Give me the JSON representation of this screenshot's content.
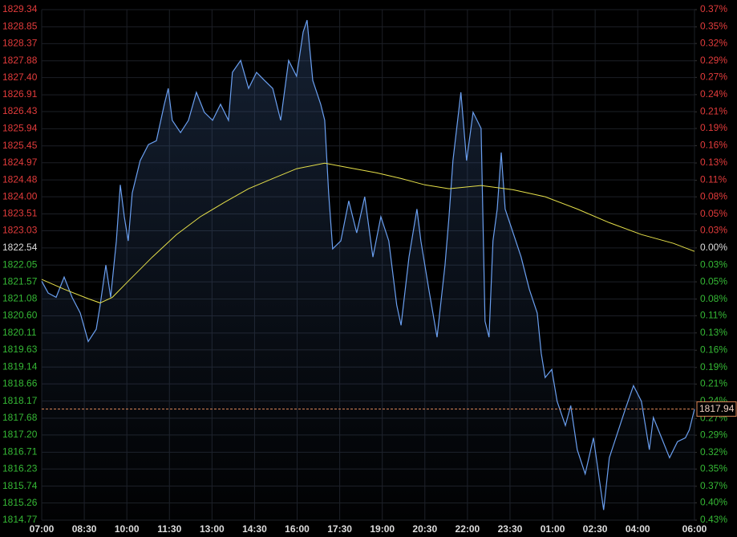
{
  "chart_data": {
    "type": "line",
    "grid": true,
    "background": "#000000",
    "up_color": "#e23b3b",
    "down_color": "#35b835",
    "neutral_color": "#dddddd",
    "last_price": 1817.94,
    "last_price_color": "#e0895a",
    "area_color": "#3a5a8c",
    "xlim": [
      7,
      30
    ],
    "xticks": [
      {
        "value": 7,
        "label": "07:00"
      },
      {
        "value": 8.5,
        "label": "08:30"
      },
      {
        "value": 10,
        "label": "10:00"
      },
      {
        "value": 11.5,
        "label": "11:30"
      },
      {
        "value": 13,
        "label": "13:00"
      },
      {
        "value": 14.5,
        "label": "14:30"
      },
      {
        "value": 16,
        "label": "16:00"
      },
      {
        "value": 17.5,
        "label": "17:30"
      },
      {
        "value": 19,
        "label": "19:00"
      },
      {
        "value": 20.5,
        "label": "20:30"
      },
      {
        "value": 22,
        "label": "22:00"
      },
      {
        "value": 23.5,
        "label": "23:30"
      },
      {
        "value": 25,
        "label": "01:00"
      },
      {
        "value": 26.5,
        "label": "02:30"
      },
      {
        "value": 28,
        "label": "04:00"
      },
      {
        "value": 30,
        "label": "06:00"
      }
    ],
    "ylim": [
      1814.77,
      1829.34
    ],
    "yticks": [
      1829.34,
      1828.85,
      1828.37,
      1827.88,
      {
        "value": 1827.4,
        "label": "1827.40"
      },
      1826.91,
      1826.43,
      1825.94,
      1825.45,
      1824.97,
      1824.48,
      {
        "value": 1824,
        "label": "1824.00"
      },
      1823.51,
      1823.03,
      1822.54,
      1822.05,
      1821.57,
      1821.08,
      {
        "value": 1820.6,
        "label": "1820.60"
      },
      1820.11,
      1819.63,
      1819.14,
      1818.66,
      1818.17,
      1817.68,
      {
        "value": 1817.2,
        "label": "1817.20"
      },
      1816.71,
      1816.23,
      1815.74,
      1815.26,
      1814.77
    ],
    "y2lim": [
      -0.426,
      0.373
    ],
    "y2ticks": [
      {
        "value": 0.373,
        "label": "0.37%"
      },
      {
        "value": 0.346,
        "label": "0.35%"
      },
      {
        "value": 0.32,
        "label": "0.32%"
      },
      {
        "value": 0.293,
        "label": "0.29%"
      },
      {
        "value": 0.267,
        "label": "0.27%"
      },
      {
        "value": 0.24,
        "label": "0.24%"
      },
      {
        "value": 0.213,
        "label": "0.21%"
      },
      {
        "value": 0.187,
        "label": "0.19%"
      },
      {
        "value": 0.16,
        "label": "0.16%"
      },
      {
        "value": 0.133,
        "label": "0.13%"
      },
      {
        "value": 0.106,
        "label": "0.11%"
      },
      {
        "value": 0.08,
        "label": "0.08%"
      },
      {
        "value": 0.053,
        "label": "0.05%"
      },
      {
        "value": 0.027,
        "label": "0.03%"
      },
      {
        "value": 0,
        "label": "0.00%"
      },
      {
        "value": -0.027,
        "label": "0.03%"
      },
      {
        "value": -0.053,
        "label": "0.05%"
      },
      {
        "value": -0.08,
        "label": "0.08%"
      },
      {
        "value": -0.106,
        "label": "0.11%"
      },
      {
        "value": -0.133,
        "label": "0.13%"
      },
      {
        "value": -0.16,
        "label": "0.16%"
      },
      {
        "value": -0.187,
        "label": "0.19%"
      },
      {
        "value": -0.213,
        "label": "0.21%"
      },
      {
        "value": -0.24,
        "label": "0.24%"
      },
      {
        "value": -0.267,
        "label": "0.27%"
      },
      {
        "value": -0.293,
        "label": "0.29%"
      },
      {
        "value": -0.32,
        "label": "0.32%"
      },
      {
        "value": -0.346,
        "label": "0.35%"
      },
      {
        "value": -0.373,
        "label": "0.37%"
      },
      {
        "value": -0.399,
        "label": "0.40%"
      },
      {
        "value": -0.426,
        "label": "0.43%"
      }
    ],
    "series": [
      {
        "color": "#6a9ff0",
        "area": true,
        "x": [
          7.0,
          7.23,
          7.51,
          7.79,
          8.07,
          8.36,
          8.64,
          8.92,
          9.06,
          9.26,
          9.43,
          9.63,
          9.77,
          9.91,
          10.05,
          10.19,
          10.47,
          10.76,
          11.04,
          11.32,
          11.46,
          11.6,
          11.89,
          12.17,
          12.45,
          12.73,
          13.02,
          13.3,
          13.58,
          13.72,
          14.01,
          14.29,
          14.57,
          14.85,
          15.14,
          15.42,
          15.7,
          15.98,
          16.21,
          16.35,
          16.55,
          16.83,
          16.97,
          17.11,
          17.25,
          17.54,
          17.82,
          18.1,
          18.38,
          18.67,
          18.95,
          19.23,
          19.51,
          19.66,
          19.94,
          20.22,
          20.36,
          20.64,
          20.93,
          21.21,
          21.35,
          21.49,
          21.77,
          21.97,
          22.2,
          22.48,
          22.62,
          22.76,
          22.9,
          23.05,
          23.19,
          23.33,
          23.61,
          23.89,
          24.18,
          24.46,
          24.6,
          24.74,
          24.97,
          25.16,
          25.45,
          25.64,
          25.87,
          26.15,
          26.44,
          26.66,
          26.8,
          27.0,
          27.28,
          27.56,
          27.85,
          28.13,
          28.41,
          28.55,
          28.84,
          29.12,
          29.4,
          29.68,
          29.82,
          30.0
        ],
        "values": [
          1821.59,
          1821.25,
          1821.13,
          1821.71,
          1821.13,
          1820.68,
          1819.87,
          1820.22,
          1820.91,
          1822.05,
          1821.13,
          1822.74,
          1824.34,
          1823.43,
          1822.74,
          1824.11,
          1825.03,
          1825.49,
          1825.6,
          1826.64,
          1827.09,
          1826.18,
          1825.83,
          1826.18,
          1826.98,
          1826.41,
          1826.18,
          1826.64,
          1826.18,
          1827.55,
          1827.89,
          1827.09,
          1827.55,
          1827.32,
          1827.09,
          1826.18,
          1827.89,
          1827.44,
          1828.7,
          1829.04,
          1827.32,
          1826.64,
          1826.18,
          1824.11,
          1822.51,
          1822.74,
          1823.88,
          1822.97,
          1824.0,
          1822.28,
          1823.43,
          1822.74,
          1820.91,
          1820.33,
          1822.28,
          1823.65,
          1822.74,
          1821.36,
          1819.99,
          1822.05,
          1823.43,
          1825.03,
          1826.98,
          1825.03,
          1826.41,
          1825.95,
          1820.45,
          1819.99,
          1822.74,
          1823.65,
          1825.26,
          1823.65,
          1822.97,
          1822.28,
          1821.36,
          1820.68,
          1819.53,
          1818.84,
          1819.07,
          1818.16,
          1817.47,
          1818.04,
          1816.78,
          1816.09,
          1817.12,
          1815.86,
          1815.06,
          1816.55,
          1817.24,
          1817.93,
          1818.61,
          1818.16,
          1816.78,
          1817.7,
          1817.12,
          1816.55,
          1817.01,
          1817.12,
          1817.35,
          1817.94
        ]
      },
      {
        "color": "#e6e04a",
        "area": false,
        "x": [
          7.0,
          7.79,
          8.64,
          9.06,
          9.49,
          10.05,
          10.9,
          11.75,
          12.59,
          13.44,
          14.29,
          15.14,
          15.98,
          16.97,
          17.68,
          18.81,
          19.66,
          20.5,
          21.35,
          22.48,
          23.61,
          24.74,
          25.87,
          27.0,
          28.13,
          29.26,
          30.0
        ],
        "values": [
          1821.64,
          1821.36,
          1821.09,
          1820.97,
          1821.13,
          1821.59,
          1822.28,
          1822.92,
          1823.43,
          1823.84,
          1824.23,
          1824.52,
          1824.8,
          1824.96,
          1824.85,
          1824.68,
          1824.52,
          1824.34,
          1824.23,
          1824.32,
          1824.2,
          1824.0,
          1823.65,
          1823.26,
          1822.92,
          1822.67,
          1822.44
        ]
      }
    ]
  }
}
